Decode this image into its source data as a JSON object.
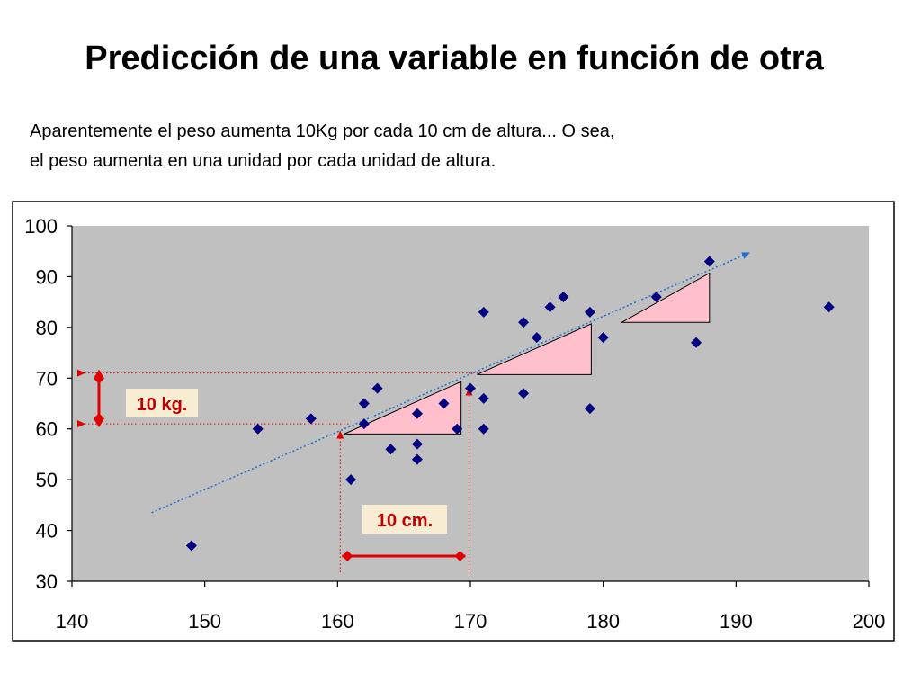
{
  "slide": {
    "title": "Predicción de una variable en función de otra",
    "subtitle_line1": "Aparentemente el peso aumenta 10Kg por cada 10 cm de altura... O sea,",
    "subtitle_line2": "el peso aumenta en una unidad por cada unidad de altura."
  },
  "chart_data": {
    "type": "scatter",
    "xlim": [
      140,
      200
    ],
    "ylim": [
      30,
      100
    ],
    "xticks": [
      "140",
      "150",
      "160",
      "170",
      "180",
      "190",
      "200"
    ],
    "yticks": [
      "30",
      "40",
      "50",
      "60",
      "70",
      "80",
      "90",
      "100"
    ],
    "plot_background": "#c0c0c0",
    "grid": false,
    "marker_color": "#000080",
    "points": [
      {
        "x": 149,
        "y": 37
      },
      {
        "x": 154,
        "y": 60
      },
      {
        "x": 158,
        "y": 62
      },
      {
        "x": 161,
        "y": 50
      },
      {
        "x": 162,
        "y": 61
      },
      {
        "x": 162,
        "y": 65
      },
      {
        "x": 163,
        "y": 68
      },
      {
        "x": 164,
        "y": 56
      },
      {
        "x": 166,
        "y": 63
      },
      {
        "x": 166,
        "y": 57
      },
      {
        "x": 166,
        "y": 54
      },
      {
        "x": 168,
        "y": 65
      },
      {
        "x": 169,
        "y": 60
      },
      {
        "x": 170,
        "y": 68
      },
      {
        "x": 171,
        "y": 83
      },
      {
        "x": 171,
        "y": 66
      },
      {
        "x": 171,
        "y": 60
      },
      {
        "x": 174,
        "y": 81
      },
      {
        "x": 174,
        "y": 67
      },
      {
        "x": 175,
        "y": 78
      },
      {
        "x": 176,
        "y": 84
      },
      {
        "x": 177,
        "y": 86
      },
      {
        "x": 179,
        "y": 83
      },
      {
        "x": 179,
        "y": 64
      },
      {
        "x": 180,
        "y": 78
      },
      {
        "x": 184,
        "y": 86
      },
      {
        "x": 187,
        "y": 77
      },
      {
        "x": 188,
        "y": 93
      },
      {
        "x": 197,
        "y": 84
      }
    ],
    "trend_line": {
      "x": [
        146,
        191
      ],
      "y": [
        43.5,
        94.7
      ],
      "color": "#1e6fd0",
      "style": "dotted"
    },
    "slope_triangles": [
      {
        "x": [
          160.5,
          169.3
        ],
        "y": [
          59,
          69.3
        ]
      },
      {
        "x": [
          170.5,
          179.1
        ],
        "y": [
          70.7,
          80.7
        ]
      },
      {
        "x": [
          181.4,
          188
        ],
        "y": [
          81,
          90.7
        ]
      }
    ],
    "triangle_fill": "#ffc0cb",
    "annotations": {
      "weight_label": "10 kg.",
      "height_label": "10 cm.",
      "label_color": "#c00000",
      "label_background": "#f8ecd2",
      "arrow_color": "#e00000"
    },
    "reference_lines": {
      "y_values": [
        61,
        71
      ],
      "x_values": [
        160.2,
        169.9
      ],
      "color": "#e00000"
    }
  }
}
